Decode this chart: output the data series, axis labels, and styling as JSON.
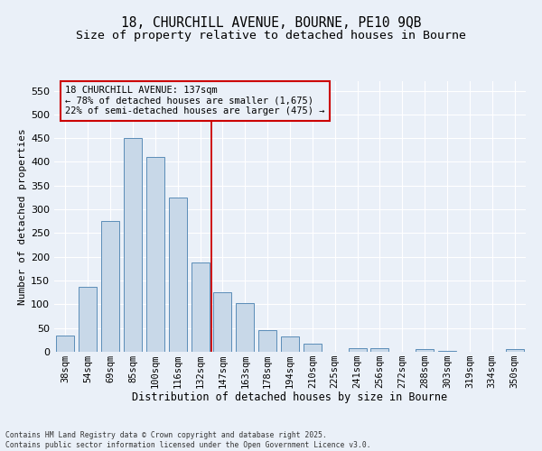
{
  "title": "18, CHURCHILL AVENUE, BOURNE, PE10 9QB",
  "subtitle": "Size of property relative to detached houses in Bourne",
  "xlabel": "Distribution of detached houses by size in Bourne",
  "ylabel": "Number of detached properties",
  "categories": [
    "38sqm",
    "54sqm",
    "69sqm",
    "85sqm",
    "100sqm",
    "116sqm",
    "132sqm",
    "147sqm",
    "163sqm",
    "178sqm",
    "194sqm",
    "210sqm",
    "225sqm",
    "241sqm",
    "256sqm",
    "272sqm",
    "288sqm",
    "303sqm",
    "319sqm",
    "334sqm",
    "350sqm"
  ],
  "values": [
    35,
    137,
    275,
    450,
    410,
    325,
    188,
    125,
    102,
    45,
    33,
    18,
    0,
    7,
    8,
    0,
    5,
    2,
    0,
    0,
    5
  ],
  "bar_color": "#c8d8e8",
  "bar_edge_color": "#5b8db8",
  "vline_x": 6.5,
  "vline_color": "#cc0000",
  "annotation_text": "18 CHURCHILL AVENUE: 137sqm\n← 78% of detached houses are smaller (1,675)\n22% of semi-detached houses are larger (475) →",
  "annotation_box_color": "#cc0000",
  "ylim": [
    0,
    570
  ],
  "yticks": [
    0,
    50,
    100,
    150,
    200,
    250,
    300,
    350,
    400,
    450,
    500,
    550
  ],
  "background_color": "#eaf0f8",
  "grid_color": "#ffffff",
  "footer": "Contains HM Land Registry data © Crown copyright and database right 2025.\nContains public sector information licensed under the Open Government Licence v3.0.",
  "title_fontsize": 10.5,
  "subtitle_fontsize": 9.5,
  "xlabel_fontsize": 8.5,
  "ylabel_fontsize": 8.0,
  "tick_fontsize": 7.5,
  "ytick_fontsize": 8.0,
  "annotation_fontsize": 7.5,
  "footer_fontsize": 5.8
}
